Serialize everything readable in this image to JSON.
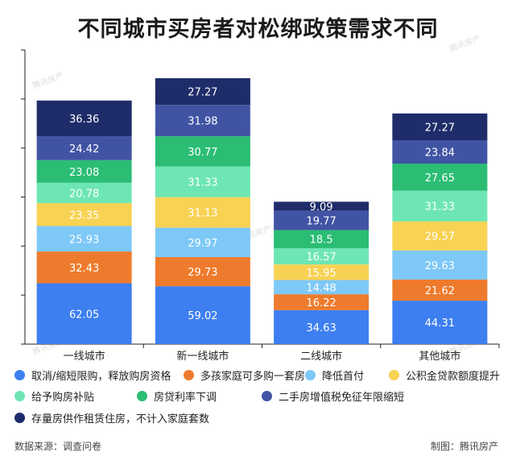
{
  "title": "不同城市买房者对松绑政策需求不同",
  "source": "数据来源：调查问卷",
  "credit": "制图：腾讯房产",
  "watermark": "腾讯房产",
  "colors": {
    "取消/缩短限购，释放购房资格": "#3d7ff0",
    "多孩家庭可多购一套房": "#ee7b2d",
    "降低首付": "#7dc8f7",
    "公积金贷款额度提升": "#f8d253",
    "给予购房补贴": "#6ee6b4",
    "房贷利率下调": "#2bbd74",
    "二手房增值税免征年限缩短": "#4154a4",
    "存量房供作租赁住房，不计入家庭套数": "#1f2c6a"
  },
  "chart_data": {
    "type": "bar",
    "stacked": true,
    "title": "不同城市买房者对松绑政策需求不同",
    "categories": [
      "一线城市",
      "新一线城市",
      "二线城市",
      "其他城市"
    ],
    "series": [
      {
        "name": "取消/缩短限购，释放购房资格",
        "values": [
          62.05,
          59.02,
          34.63,
          44.31
        ]
      },
      {
        "name": "多孩家庭可多购一套房",
        "values": [
          32.43,
          29.73,
          16.22,
          21.62
        ]
      },
      {
        "name": "降低首付",
        "values": [
          25.93,
          29.97,
          14.48,
          29.63
        ]
      },
      {
        "name": "公积金贷款额度提升",
        "values": [
          23.35,
          31.13,
          15.95,
          29.57
        ]
      },
      {
        "name": "给予购房补贴",
        "values": [
          20.78,
          31.33,
          16.57,
          31.33
        ]
      },
      {
        "name": "房贷利率下调",
        "values": [
          23.08,
          30.77,
          18.5,
          27.65
        ]
      },
      {
        "name": "二手房增值税免征年限缩短",
        "values": [
          24.42,
          31.98,
          19.77,
          23.84
        ]
      },
      {
        "name": "存量房供作租赁住房，不计入家庭套数",
        "values": [
          36.36,
          27.27,
          9.09,
          27.27
        ]
      }
    ],
    "ylim": [
      0,
      300
    ],
    "y_tick_step": 50,
    "y_tick_labels_shown": false,
    "grid": false,
    "legend_position": "bottom"
  }
}
